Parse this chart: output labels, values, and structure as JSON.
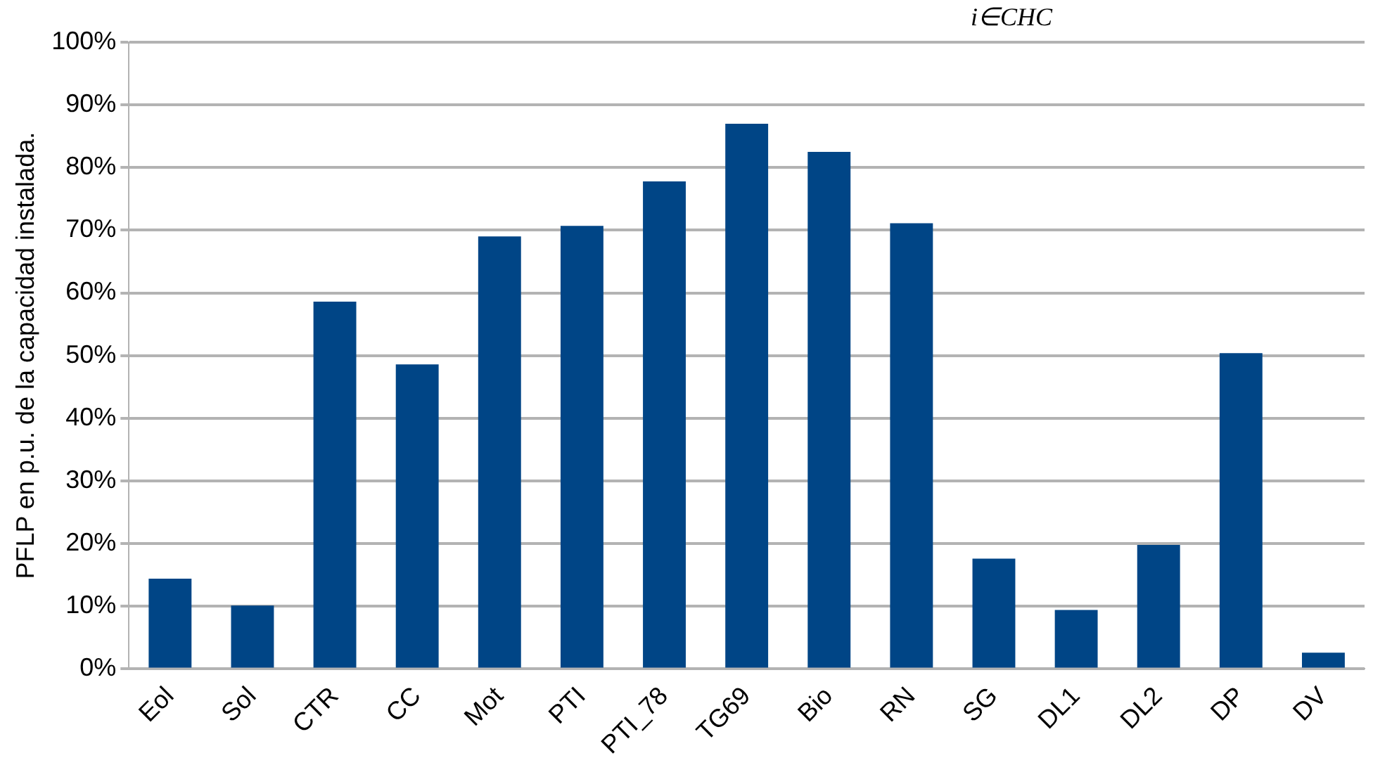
{
  "chart_data": {
    "type": "bar",
    "ylabel": "PFLP en p.u. de la capacidad instalada.",
    "annotations": [
      "i∈CHC"
    ],
    "categories": [
      "Eol",
      "Sol",
      "CTR",
      "CC",
      "Mot",
      "PTI",
      "PTI_78",
      "TG69",
      "Bio",
      "RN",
      "SG",
      "DL1",
      "DL2",
      "DP",
      "DV"
    ],
    "values": [
      14.4,
      10.1,
      58.6,
      48.6,
      69.0,
      70.7,
      77.8,
      87,
      82.5,
      71.1,
      17.6,
      9.4,
      19.8,
      50.4,
      2.6
    ],
    "color": "#004586",
    "ylim": [
      0,
      100
    ],
    "yticks": [
      {
        "value": 0,
        "label": "0%"
      },
      {
        "value": 10,
        "label": "10%"
      },
      {
        "value": 20,
        "label": "20%"
      },
      {
        "value": 30,
        "label": "30%"
      },
      {
        "value": 40,
        "label": "40%"
      },
      {
        "value": 50,
        "label": "50%"
      },
      {
        "value": 60,
        "label": "60%"
      },
      {
        "value": 70,
        "label": "70%"
      },
      {
        "value": 80,
        "label": "80%"
      },
      {
        "value": 90,
        "label": "90%"
      },
      {
        "value": 100,
        "label": "100%"
      }
    ],
    "grid": "y",
    "legend": false
  }
}
